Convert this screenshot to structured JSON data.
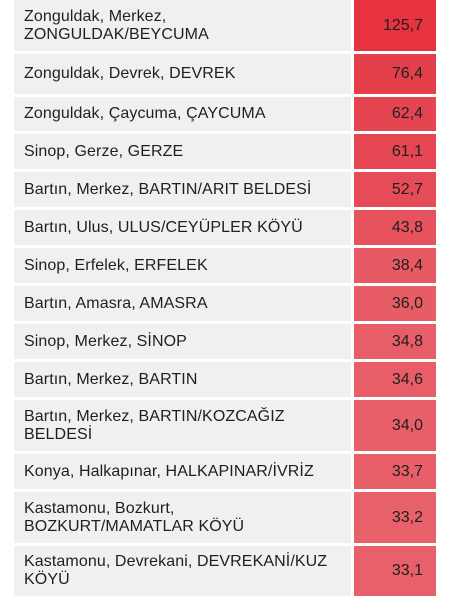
{
  "rows": [
    {
      "name": "Zonguldak, Merkez, ZONGULDAK/BEYCUMA",
      "value": "125,7",
      "color": "#e7323f"
    },
    {
      "name": "Zonguldak, Devrek, DEVREK",
      "value": "76,4",
      "color": "#e4404c"
    },
    {
      "name": "Zonguldak, Çaycuma, ÇAYCUMA",
      "value": "62,4",
      "color": "#e44551"
    },
    {
      "name": "Sinop, Gerze, GERZE",
      "value": "61,1",
      "color": "#e44652"
    },
    {
      "name": "Bartın, Merkez, BARTIN/ARIT BELDESİ",
      "value": "52,7",
      "color": "#e54c57"
    },
    {
      "name": "Bartın, Ulus, ULUS/CEYÜPLER KÖYÜ",
      "value": "43,8",
      "color": "#e6535d"
    },
    {
      "name": "Sinop, Erfelek, ERFELEK",
      "value": "38,4",
      "color": "#e75a64"
    },
    {
      "name": "Bartın, Amasra, AMASRA",
      "value": "36,0",
      "color": "#e85c66"
    },
    {
      "name": "Sinop, Merkez, SİNOP",
      "value": "34,8",
      "color": "#e85e68"
    },
    {
      "name": "Bartın, Merkez, BARTIN",
      "value": "34,6",
      "color": "#e85e68"
    },
    {
      "name": "Bartın, Merkez, BARTIN/KOZCAĞIZ BELDESİ",
      "value": "34,0",
      "color": "#e85f69"
    },
    {
      "name": "Konya, Halkapınar, HALKAPINAR/İVRİZ",
      "value": "33,7",
      "color": "#e85f69"
    },
    {
      "name": "Kastamonu, Bozkurt, BOZKURT/MAMATLAR KÖYÜ",
      "value": "33,2",
      "color": "#e8606a"
    },
    {
      "name": "Kastamonu, Devrekani, DEVREKANİ/KUZ KÖYÜ",
      "value": "33,1",
      "color": "#e8606a"
    }
  ]
}
